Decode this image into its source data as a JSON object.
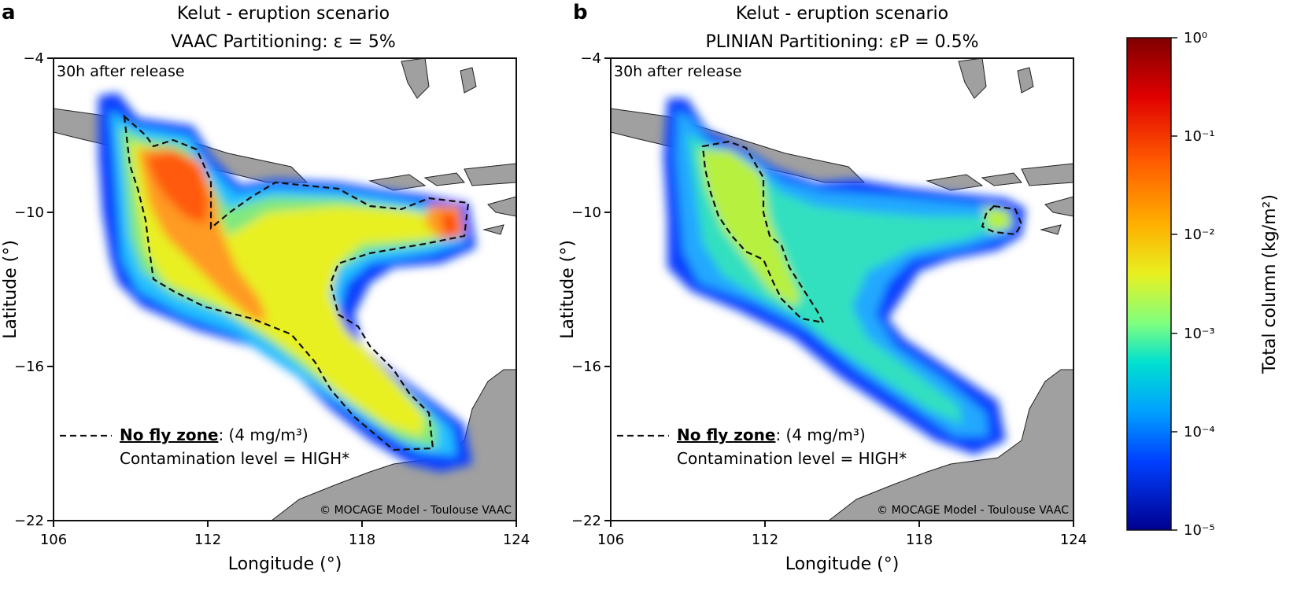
{
  "panels": [
    {
      "letter": "a",
      "title_line1": "Kelut - eruption scenario",
      "title_line2": "VAAC Partitioning:  ε = 5%",
      "time_label": "30h after release",
      "legend_bold": "No fly zone",
      "legend_rest": ": (4 mg/m³)",
      "legend_line2": "Contamination level = HIGH*",
      "credit": "© MOCAGE Model - Toulouse VAAC",
      "xlabel": "Longitude (°)",
      "ylabel": "Latitude (°)",
      "x_ticks": [
        "106",
        "112",
        "118",
        "124"
      ],
      "y_ticks": [
        "−4",
        "−10",
        "−16",
        "−22"
      ]
    },
    {
      "letter": "b",
      "title_line1": "Kelut - eruption scenario",
      "title_line2": "PLINIAN Partitioning:  εP = 0.5%",
      "time_label": "30h after release",
      "legend_bold": "No fly zone",
      "legend_rest": ": (4 mg/m³)",
      "legend_line2": "Contamination level = HIGH*",
      "credit": "© MOCAGE Model - Toulouse VAAC",
      "xlabel": "Longitude (°)",
      "ylabel": "Latitude (°)",
      "x_ticks": [
        "106",
        "112",
        "118",
        "124"
      ],
      "y_ticks": [
        "−4",
        "−10",
        "−16",
        "−22"
      ]
    }
  ],
  "colorbar": {
    "label": "Total column (kg/m²)",
    "ticks": [
      "10⁰",
      "10⁻¹",
      "10⁻²",
      "10⁻³",
      "10⁻⁴",
      "10⁻⁵"
    ],
    "colors": [
      "#7f0000",
      "#ff2a00",
      "#ff9a00",
      "#ffff00",
      "#7fff7f",
      "#00e0ff",
      "#0090ff",
      "#0010ff",
      "#00008f"
    ]
  },
  "colors": {
    "land": "#a0a0a0",
    "plume_high": "#ff5a10",
    "plume_mid": "#e8f020",
    "plume_low": "#30e0b0",
    "plume_edge": "#1040ff"
  }
}
